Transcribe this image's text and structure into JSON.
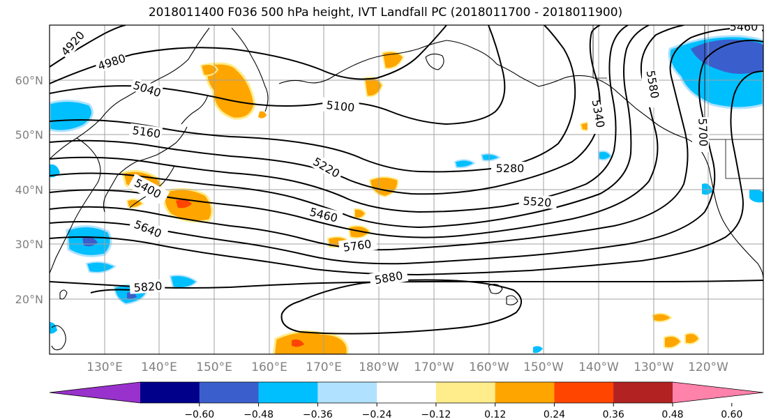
{
  "title": "2018011400 F036 500 hPa height, IVT Landfall PC (2018011700 - 2018011900)",
  "lat_labels": [
    "60°N",
    "50°N",
    "40°N",
    "30°N",
    "20°N"
  ],
  "lon_labels": [
    "130°E",
    "140°E",
    "150°E",
    "160°E",
    "170°E",
    "180°W",
    "170°W",
    "160°W",
    "150°W",
    "140°W",
    "130°W",
    "120°W"
  ],
  "contour_labels": [
    "4920",
    "4980",
    "5040",
    "5100",
    "5160",
    "5220",
    "5280",
    "5340",
    "5400",
    "5460",
    "5520",
    "5580",
    "5640",
    "5700",
    "5760",
    "5820",
    "5880",
    "5460"
  ],
  "colorbar": {
    "ticks": [
      "−0.60",
      "−0.48",
      "−0.36",
      "−0.24",
      "−0.12",
      "0.12",
      "0.24",
      "0.36",
      "0.48",
      "0.60"
    ],
    "colors": [
      "#9932cc",
      "#00008b",
      "#3a5fcd",
      "#00bfff",
      "#b0e2ff",
      "#ffffff",
      "#ffec8b",
      "#ffa500",
      "#ff4500",
      "#b22222",
      "#ff82ab"
    ]
  }
}
